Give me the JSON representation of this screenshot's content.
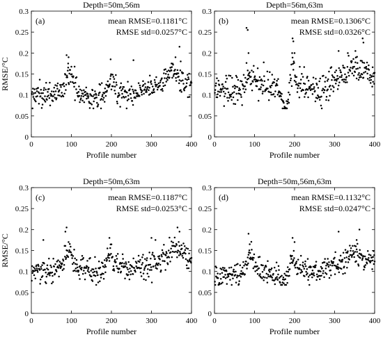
{
  "chart_data": [
    {
      "type": "scatter",
      "panel_label": "(a)",
      "title": "Depth=50m,56m",
      "xlabel": "Profile number",
      "ylabel": "RMSE/°C",
      "xlim": [
        0,
        400
      ],
      "ylim": [
        0,
        0.3
      ],
      "xticks": [
        "0",
        "100",
        "200",
        "300",
        "400"
      ],
      "yticks": [
        "0",
        "0.05",
        "0.1",
        "0.15",
        "0.2",
        "0.25",
        "0.3"
      ],
      "annotations": [
        "mean RMSE=0.1181°C",
        "RMSE std=0.0257°C"
      ],
      "mean": 0.1181,
      "std": 0.0257,
      "n": 400,
      "features": [
        {
          "x": 95,
          "w": 14,
          "a": 0.045
        },
        {
          "x": 200,
          "w": 8,
          "a": 0.035
        },
        {
          "x": 350,
          "w": 22,
          "a": 0.03
        },
        {
          "x": 160,
          "w": 25,
          "a": -0.02
        },
        {
          "x": 250,
          "w": 30,
          "a": -0.015
        }
      ],
      "spikes": [
        [
          88,
          0.195
        ],
        [
          93,
          0.19
        ],
        [
          198,
          0.185
        ],
        [
          255,
          0.183
        ],
        [
          370,
          0.215
        ],
        [
          360,
          0.19
        ],
        [
          373,
          0.18
        ],
        [
          92,
          0.175
        ],
        [
          350,
          0.175
        ]
      ],
      "grid": false
    },
    {
      "type": "scatter",
      "panel_label": "(b)",
      "title": "Depth=56m,63m",
      "xlabel": "Profile number",
      "ylabel": "",
      "xlim": [
        0,
        400
      ],
      "ylim": [
        0,
        0.3
      ],
      "xticks": [
        "0",
        "100",
        "200",
        "300",
        "400"
      ],
      "yticks": [
        "0",
        "0.05",
        "0.1",
        "0.15",
        "0.2",
        "0.25",
        "0.3"
      ],
      "annotations": [
        "mean RMSE=0.1306°C",
        "RMSE std=0.0326°C"
      ],
      "mean": 0.1306,
      "std": 0.0326,
      "n": 400,
      "features": [
        {
          "x": 90,
          "w": 18,
          "a": 0.03
        },
        {
          "x": 195,
          "w": 8,
          "a": 0.06
        },
        {
          "x": 175,
          "w": 15,
          "a": -0.04
        },
        {
          "x": 260,
          "w": 25,
          "a": -0.02
        },
        {
          "x": 355,
          "w": 30,
          "a": 0.03
        }
      ],
      "spikes": [
        [
          80,
          0.26
        ],
        [
          83,
          0.255
        ],
        [
          195,
          0.235
        ],
        [
          197,
          0.228
        ],
        [
          370,
          0.235
        ],
        [
          372,
          0.225
        ],
        [
          352,
          0.205
        ],
        [
          310,
          0.205
        ],
        [
          85,
          0.2
        ],
        [
          200,
          0.2
        ]
      ],
      "grid": false
    },
    {
      "type": "scatter",
      "panel_label": "(c)",
      "title": "Depth=50m,63m",
      "xlabel": "Profile number",
      "ylabel": "RMSE/°C",
      "xlim": [
        0,
        400
      ],
      "ylim": [
        0,
        0.3
      ],
      "xticks": [
        "0",
        "100",
        "200",
        "300",
        "400"
      ],
      "yticks": [
        "0",
        "0.05",
        "0.1",
        "0.15",
        "0.2",
        "0.25",
        "0.3"
      ],
      "annotations": [
        "mean RMSE=0.1187°C",
        "RMSE std=0.0253°C"
      ],
      "mean": 0.1187,
      "std": 0.0253,
      "n": 400,
      "features": [
        {
          "x": 90,
          "w": 14,
          "a": 0.04
        },
        {
          "x": 195,
          "w": 10,
          "a": 0.03
        },
        {
          "x": 360,
          "w": 25,
          "a": 0.03
        },
        {
          "x": 165,
          "w": 20,
          "a": -0.015
        },
        {
          "x": 250,
          "w": 25,
          "a": -0.015
        }
      ],
      "spikes": [
        [
          88,
          0.205
        ],
        [
          85,
          0.195
        ],
        [
          365,
          0.205
        ],
        [
          370,
          0.195
        ],
        [
          300,
          0.18
        ],
        [
          30,
          0.175
        ],
        [
          195,
          0.18
        ],
        [
          310,
          0.175
        ]
      ],
      "grid": false
    },
    {
      "type": "scatter",
      "panel_label": "(d)",
      "title": "Depth=50m,56m,63m",
      "xlabel": "Profile number",
      "ylabel": "",
      "xlim": [
        0,
        400
      ],
      "ylim": [
        0,
        0.3
      ],
      "xticks": [
        "0",
        "100",
        "200",
        "300",
        "400"
      ],
      "yticks": [
        "0",
        "0.05",
        "0.1",
        "0.15",
        "0.2",
        "0.25",
        "0.3"
      ],
      "annotations": [
        "mean RMSE=0.1132°C",
        "RMSE std=0.0247°C"
      ],
      "mean": 0.1132,
      "std": 0.0247,
      "n": 400,
      "features": [
        {
          "x": 90,
          "w": 14,
          "a": 0.035
        },
        {
          "x": 195,
          "w": 8,
          "a": 0.035
        },
        {
          "x": 355,
          "w": 25,
          "a": 0.025
        },
        {
          "x": 170,
          "w": 20,
          "a": -0.03
        },
        {
          "x": 250,
          "w": 25,
          "a": -0.015
        }
      ],
      "spikes": [
        [
          310,
          0.195
        ],
        [
          362,
          0.2
        ],
        [
          85,
          0.19
        ],
        [
          195,
          0.18
        ],
        [
          355,
          0.175
        ],
        [
          200,
          0.17
        ],
        [
          88,
          0.165
        ]
      ],
      "grid": false
    }
  ]
}
